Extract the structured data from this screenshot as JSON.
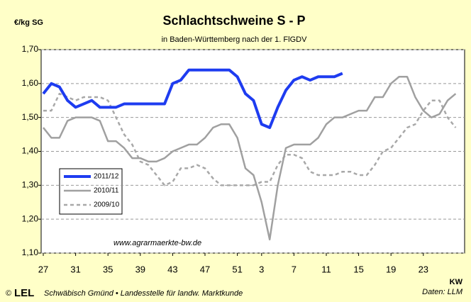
{
  "chart_data": {
    "type": "line",
    "title": "Schlachtschweine S - P",
    "subtitle": "in Baden-Württemberg nach der 1. FlGDV",
    "y_label": "€/kg SG",
    "x_label": "KW",
    "annotation": "www.agrarmaerkte-bw.de",
    "footer_logo": "LEL",
    "footer": "Schwäbisch Gmünd  •  Landesstelle für landw. Marktkunde",
    "source": "Daten: LLM",
    "categories": [
      27,
      null,
      null,
      null,
      31,
      null,
      null,
      null,
      35,
      null,
      null,
      null,
      39,
      null,
      null,
      null,
      43,
      null,
      null,
      null,
      47,
      null,
      null,
      null,
      51,
      null,
      null,
      3,
      null,
      null,
      null,
      7,
      null,
      null,
      null,
      11,
      null,
      null,
      null,
      15,
      null,
      null,
      null,
      19,
      null,
      null,
      null,
      23,
      null,
      null,
      null,
      null
    ],
    "ylim": [
      1.1,
      1.7
    ],
    "yticks": [
      {
        "value": 1.1,
        "label": "1,10"
      },
      {
        "value": 1.2,
        "label": "1,20"
      },
      {
        "value": 1.3,
        "label": "1,30"
      },
      {
        "value": 1.4,
        "label": "1,40"
      },
      {
        "value": 1.5,
        "label": "1,50"
      },
      {
        "value": 1.6,
        "label": "1,60"
      },
      {
        "value": 1.7,
        "label": "1,70"
      }
    ],
    "grid": true,
    "legend": "lower-left",
    "series": [
      {
        "name": "2011/12",
        "color": "#1e3cf0",
        "width": 4,
        "style": "solid",
        "values": [
          1.57,
          1.6,
          1.59,
          1.55,
          1.53,
          1.54,
          1.55,
          1.53,
          1.53,
          1.53,
          1.54,
          1.54,
          1.54,
          1.54,
          1.54,
          1.54,
          1.6,
          1.61,
          1.64,
          1.64,
          1.64,
          1.64,
          1.64,
          1.64,
          1.62,
          1.57,
          1.55,
          1.48,
          1.47,
          1.53,
          1.58,
          1.61,
          1.62,
          1.61,
          1.62,
          1.62,
          1.62,
          1.63,
          null,
          null,
          null,
          null,
          null,
          null,
          null,
          null,
          null,
          null,
          null,
          null,
          null,
          null
        ]
      },
      {
        "name": "2010/11",
        "color": "#a0a0a0",
        "width": 2.5,
        "style": "solid",
        "values": [
          1.47,
          1.44,
          1.44,
          1.49,
          1.5,
          1.5,
          1.5,
          1.49,
          1.43,
          1.43,
          1.41,
          1.38,
          1.38,
          1.37,
          1.37,
          1.38,
          1.4,
          1.41,
          1.42,
          1.42,
          1.44,
          1.47,
          1.48,
          1.48,
          1.44,
          1.35,
          1.33,
          1.25,
          1.14,
          1.3,
          1.41,
          1.42,
          1.42,
          1.42,
          1.44,
          1.48,
          1.5,
          1.5,
          1.51,
          1.52,
          1.52,
          1.56,
          1.56,
          1.6,
          1.62,
          1.62,
          1.56,
          1.52,
          1.5,
          1.51,
          1.55,
          1.57
        ]
      },
      {
        "name": "2009/10",
        "color": "#a8a8a8",
        "width": 2.5,
        "style": "dashed",
        "values": [
          1.52,
          1.52,
          1.57,
          1.56,
          1.55,
          1.56,
          1.56,
          1.56,
          1.55,
          1.5,
          1.45,
          1.42,
          1.37,
          1.36,
          1.33,
          1.3,
          1.31,
          1.35,
          1.35,
          1.36,
          1.35,
          1.32,
          1.3,
          1.3,
          1.3,
          1.3,
          1.3,
          1.31,
          1.31,
          1.36,
          1.39,
          1.39,
          1.38,
          1.34,
          1.33,
          1.33,
          1.33,
          1.34,
          1.34,
          1.33,
          1.33,
          1.36,
          1.4,
          1.41,
          1.44,
          1.47,
          1.48,
          1.52,
          1.55,
          1.55,
          1.5,
          1.47
        ]
      }
    ]
  }
}
